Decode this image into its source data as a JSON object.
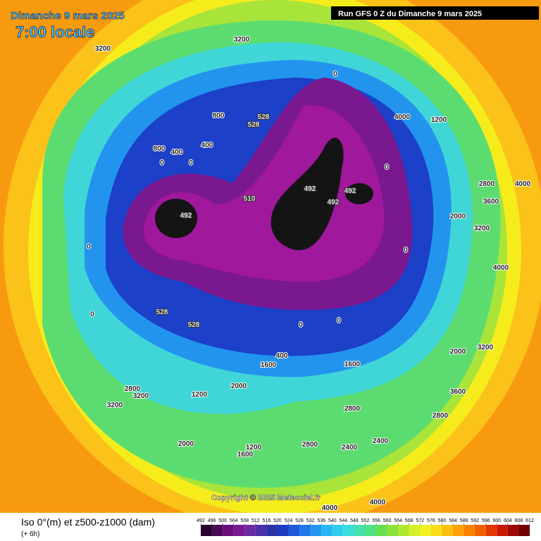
{
  "header": {
    "date": "Dimanche 9 mars 2025",
    "time": "7:00 locale",
    "run": "Run GFS 0 Z du Dimanche 9 mars 2025"
  },
  "copyright": "Copyright © 2025 Meteociel.fr",
  "legend": {
    "title": "Iso 0°(m) et z500-z1000 (dam)",
    "step": "(+ 6h)",
    "ticks": [
      492,
      496,
      500,
      504,
      508,
      512,
      516,
      520,
      524,
      528,
      532,
      536,
      540,
      544,
      548,
      552,
      556,
      560,
      564,
      568,
      572,
      576,
      580,
      584,
      588,
      592,
      596,
      600,
      604,
      608,
      612
    ],
    "colors": [
      "#2a0030",
      "#4b0a55",
      "#6a0f78",
      "#7a1890",
      "#6a2aa0",
      "#4a2fa6",
      "#2a30a8",
      "#1c3cc0",
      "#1e58d8",
      "#1f78e8",
      "#2296f0",
      "#27b4f2",
      "#30ccf0",
      "#3cdcd8",
      "#44e0b0",
      "#52e080",
      "#66e050",
      "#8ae238",
      "#b0e830",
      "#d4f028",
      "#f0f020",
      "#f8dc18",
      "#fcc010",
      "#fca008",
      "#f88000",
      "#f06000",
      "#e03800",
      "#c81800",
      "#a00808",
      "#700000"
    ]
  },
  "contour_labels": [
    492,
    492,
    492,
    492,
    510,
    528,
    528,
    528,
    528,
    0,
    0,
    0,
    0,
    0,
    0,
    0,
    0,
    0,
    800,
    800,
    400,
    400,
    400,
    1600,
    1600,
    2000,
    3200,
    3200,
    3200,
    3200,
    2800,
    2800,
    2800,
    2400,
    2400,
    2000,
    1600,
    1200,
    1200,
    3600,
    3200,
    2000,
    4000,
    4000,
    1200,
    2800,
    2800,
    4000,
    4000,
    3600,
    3200,
    2000,
    4000
  ]
}
